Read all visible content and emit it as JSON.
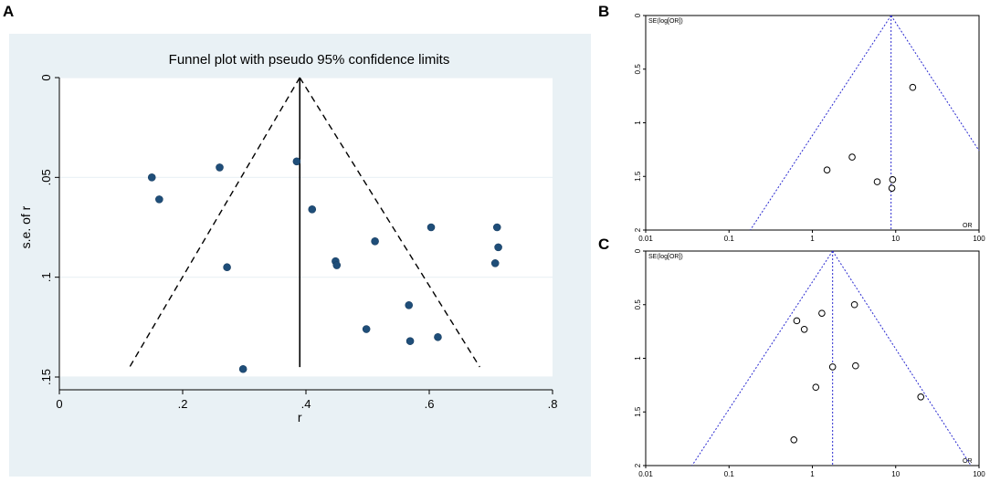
{
  "panel_labels": {
    "a": "A",
    "b": "B",
    "c": "C"
  },
  "chart_data": [
    {
      "id": "A",
      "type": "scatter",
      "title": "Funnel plot with pseudo 95% confidence limits",
      "xlabel": "r",
      "ylabel": "s.e. of r",
      "xlim": [
        0,
        0.8
      ],
      "ylim": [
        0,
        0.15
      ],
      "y_reversed": true,
      "xticks": [
        0,
        0.2,
        0.4,
        0.6,
        0.8
      ],
      "xtick_labels": [
        "0",
        ".2",
        ".4",
        ".6",
        ".8"
      ],
      "yticks": [
        0,
        0.05,
        0.1,
        0.15
      ],
      "ytick_labels": [
        "0",
        ".05",
        ".1",
        ".15"
      ],
      "grid": "horizontal",
      "pooled_estimate": 0.39,
      "ci_lines": {
        "apex": [
          0.39,
          0
        ],
        "left_end": [
          0.114,
          0.145
        ],
        "right_end": [
          0.682,
          0.145
        ]
      },
      "points": [
        {
          "x": 0.15,
          "y": 0.05
        },
        {
          "x": 0.162,
          "y": 0.061
        },
        {
          "x": 0.26,
          "y": 0.045
        },
        {
          "x": 0.385,
          "y": 0.042
        },
        {
          "x": 0.41,
          "y": 0.066
        },
        {
          "x": 0.272,
          "y": 0.095
        },
        {
          "x": 0.448,
          "y": 0.092
        },
        {
          "x": 0.45,
          "y": 0.094
        },
        {
          "x": 0.512,
          "y": 0.082
        },
        {
          "x": 0.603,
          "y": 0.075
        },
        {
          "x": 0.71,
          "y": 0.075
        },
        {
          "x": 0.712,
          "y": 0.085
        },
        {
          "x": 0.707,
          "y": 0.093
        },
        {
          "x": 0.567,
          "y": 0.114
        },
        {
          "x": 0.498,
          "y": 0.126
        },
        {
          "x": 0.569,
          "y": 0.132
        },
        {
          "x": 0.614,
          "y": 0.13
        },
        {
          "x": 0.298,
          "y": 0.146
        }
      ]
    },
    {
      "id": "B",
      "type": "scatter",
      "title": "",
      "xlabel": "OR",
      "ylabel": "SE(log[OR])",
      "xscale": "log",
      "xlim": [
        0.01,
        100
      ],
      "ylim": [
        0,
        2
      ],
      "y_reversed": true,
      "xticks": [
        0.01,
        0.1,
        1,
        10,
        100
      ],
      "xtick_labels": [
        "0.01",
        "0.1",
        "1",
        "10",
        "100"
      ],
      "yticks": [
        0,
        0.5,
        1,
        1.5,
        2
      ],
      "ytick_labels": [
        "0",
        "0.5",
        "1",
        "1.5",
        "2"
      ],
      "pooled_estimate": 8.8,
      "ci_lines": {
        "apex": [
          8.8,
          0
        ],
        "left_end": [
          0.18,
          2
        ],
        "right_end": [
          100,
          1.26
        ]
      },
      "points": [
        {
          "x": 16,
          "y": 0.67
        },
        {
          "x": 3,
          "y": 1.32
        },
        {
          "x": 1.5,
          "y": 1.44
        },
        {
          "x": 6,
          "y": 1.55
        },
        {
          "x": 9.2,
          "y": 1.53
        },
        {
          "x": 9,
          "y": 1.61
        }
      ]
    },
    {
      "id": "C",
      "type": "scatter",
      "title": "",
      "xlabel": "OR",
      "ylabel": "SE(log[OR])",
      "xscale": "log",
      "xlim": [
        0.01,
        100
      ],
      "ylim": [
        0,
        2
      ],
      "y_reversed": true,
      "xticks": [
        0.01,
        0.1,
        1,
        10,
        100
      ],
      "xtick_labels": [
        "0.01",
        "0.1",
        "1",
        "10",
        "100"
      ],
      "yticks": [
        0,
        0.5,
        1,
        1.5,
        2
      ],
      "ytick_labels": [
        "0",
        "0.5",
        "1",
        "1.5",
        "2"
      ],
      "pooled_estimate": 1.75,
      "ci_lines": {
        "apex": [
          1.75,
          0
        ],
        "left_end": [
          0.036,
          2
        ],
        "right_end": [
          80,
          2
        ]
      },
      "points": [
        {
          "x": 3.2,
          "y": 0.5
        },
        {
          "x": 1.3,
          "y": 0.58
        },
        {
          "x": 0.65,
          "y": 0.65
        },
        {
          "x": 0.8,
          "y": 0.73
        },
        {
          "x": 1.75,
          "y": 1.08
        },
        {
          "x": 3.3,
          "y": 1.07
        },
        {
          "x": 1.1,
          "y": 1.27
        },
        {
          "x": 20,
          "y": 1.36
        },
        {
          "x": 0.6,
          "y": 1.76
        }
      ]
    }
  ]
}
